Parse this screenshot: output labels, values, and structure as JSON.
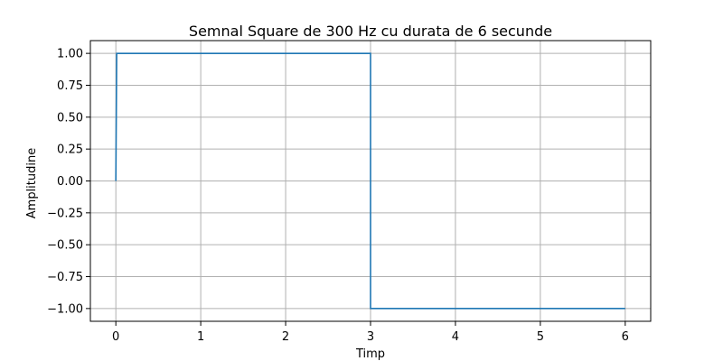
{
  "chart_data": {
    "type": "line",
    "title": "Semnal Square de 300 Hz cu durata de 6 secunde",
    "xlabel": "Timp",
    "ylabel": "Amplitudine",
    "xlim": [
      -0.3,
      6.3
    ],
    "ylim": [
      -1.1,
      1.1
    ],
    "xticks": [
      0,
      1,
      2,
      3,
      4,
      5,
      6
    ],
    "xtick_labels": [
      "0",
      "1",
      "2",
      "3",
      "4",
      "5",
      "6"
    ],
    "yticks": [
      1.0,
      0.75,
      0.5,
      0.25,
      0.0,
      -0.25,
      -0.5,
      -0.75,
      -1.0
    ],
    "ytick_labels": [
      "1.00",
      "0.75",
      "0.50",
      "0.25",
      "0.00",
      "−0.25",
      "−0.50",
      "−0.75",
      "−1.00"
    ],
    "grid": true,
    "series": [
      {
        "color": "#1f77b4",
        "x": [
          0,
          0.01,
          0.02,
          3.0,
          3.0,
          6.0
        ],
        "y": [
          0,
          1,
          1,
          1,
          -1,
          -1
        ]
      }
    ]
  }
}
